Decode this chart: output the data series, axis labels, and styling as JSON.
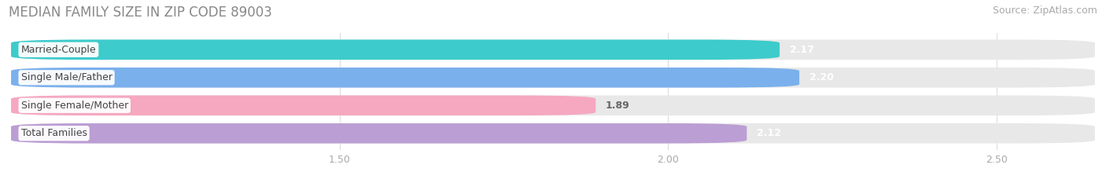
{
  "title": "MEDIAN FAMILY SIZE IN ZIP CODE 89003",
  "source": "Source: ZipAtlas.com",
  "categories": [
    "Married-Couple",
    "Single Male/Father",
    "Single Female/Mother",
    "Total Families"
  ],
  "values": [
    2.17,
    2.2,
    1.89,
    2.12
  ],
  "bar_colors": [
    "#3dcbcb",
    "#7ab0ec",
    "#f5a8c0",
    "#bb9ed4"
  ],
  "xlim_start": 1.0,
  "xlim_end": 2.65,
  "xticks": [
    1.5,
    2.0,
    2.5
  ],
  "bar_height": 0.72,
  "background_color": "#ffffff",
  "bar_bg_color": "#e8e8e8",
  "value_fontsize": 9,
  "category_fontsize": 9,
  "title_fontsize": 12,
  "source_fontsize": 9,
  "title_color": "#888888",
  "source_color": "#aaaaaa",
  "tick_color": "#aaaaaa"
}
